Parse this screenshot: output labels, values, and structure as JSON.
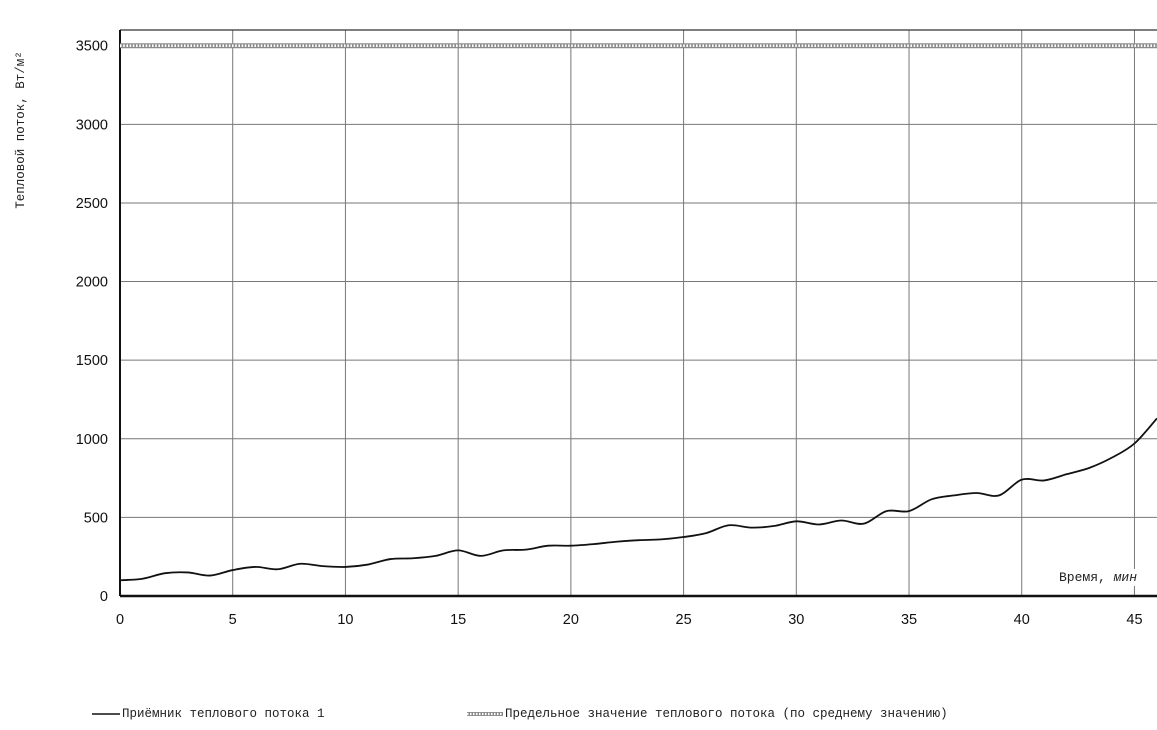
{
  "chart_data": {
    "type": "line",
    "ylabel": "Тепловой поток, Вт/м²",
    "xlabel_main": "Время, ",
    "xlabel_unit": "мин",
    "xlim": [
      0,
      46
    ],
    "ylim": [
      0,
      3600
    ],
    "x_ticks": [
      0,
      5,
      10,
      15,
      20,
      25,
      30,
      35,
      40,
      45
    ],
    "y_ticks": [
      0,
      500,
      1000,
      1500,
      2000,
      2500,
      3000,
      3500
    ],
    "x_gridlines": [
      0,
      5,
      10,
      15,
      20,
      25,
      30,
      35,
      40,
      45
    ],
    "y_gridlines": [
      0,
      500,
      1000,
      1500,
      2000,
      2500,
      3000,
      3500
    ],
    "grid": true,
    "legend_position": "bottom",
    "series": [
      {
        "name": "Приёмник теплового потока 1",
        "color": "#111111",
        "style": "solid",
        "x": [
          0,
          1,
          2,
          3,
          4,
          5,
          6,
          7,
          8,
          9,
          10,
          11,
          12,
          13,
          14,
          15,
          16,
          17,
          18,
          19,
          20,
          21,
          22,
          23,
          24,
          25,
          26,
          27,
          28,
          29,
          30,
          31,
          32,
          33,
          34,
          35,
          36,
          37,
          38,
          39,
          40,
          41,
          42,
          43,
          44,
          45,
          46
        ],
        "values": [
          100,
          110,
          145,
          150,
          130,
          165,
          185,
          170,
          205,
          190,
          185,
          200,
          235,
          240,
          255,
          290,
          255,
          290,
          295,
          320,
          320,
          330,
          345,
          355,
          360,
          375,
          400,
          450,
          435,
          445,
          475,
          455,
          480,
          460,
          540,
          540,
          615,
          640,
          655,
          640,
          740,
          735,
          775,
          815,
          880,
          970,
          1130
        ]
      },
      {
        "name": "Предельное значение теплового потока (по среднему значению)",
        "color": "#8a8a8a",
        "style": "hatched",
        "x": [
          0,
          46
        ],
        "values": [
          3500,
          3500
        ]
      }
    ]
  }
}
